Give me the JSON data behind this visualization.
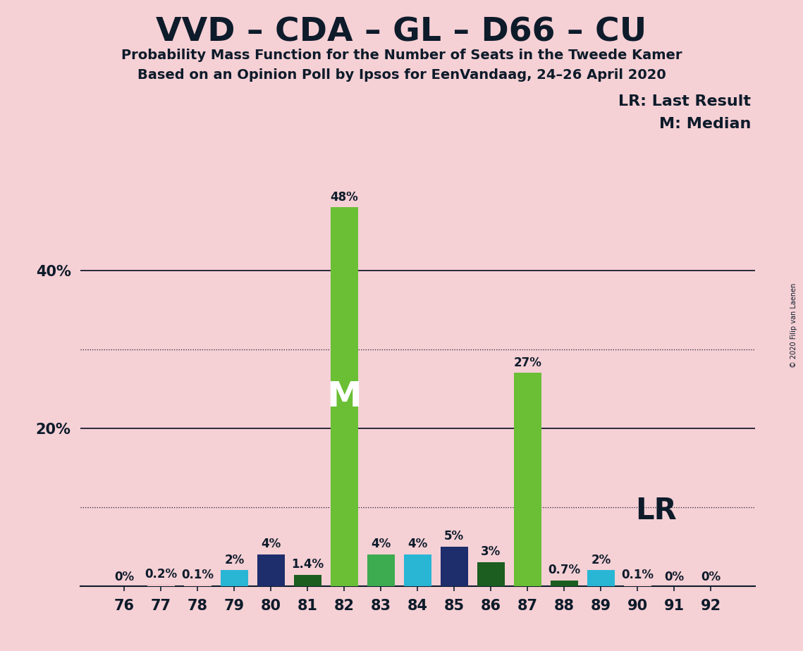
{
  "title": "VVD – CDA – GL – D66 – CU",
  "subtitle1": "Probability Mass Function for the Number of Seats in the Tweede Kamer",
  "subtitle2": "Based on an Opinion Poll by Ipsos for EenVandaag, 24–26 April 2020",
  "copyright": "© 2020 Filip van Laenen",
  "legend_lr": "LR: Last Result",
  "legend_m": "M: Median",
  "seats": [
    76,
    77,
    78,
    79,
    80,
    81,
    82,
    83,
    84,
    85,
    86,
    87,
    88,
    89,
    90,
    91,
    92
  ],
  "values": [
    0.0,
    0.2,
    0.1,
    2.0,
    4.0,
    1.4,
    48.0,
    4.0,
    4.0,
    5.0,
    3.0,
    27.0,
    0.7,
    2.0,
    0.1,
    0.0,
    0.0
  ],
  "labels": [
    "0%",
    "0.2%",
    "0.1%",
    "2%",
    "4%",
    "1.4%",
    "48%",
    "4%",
    "4%",
    "5%",
    "3%",
    "27%",
    "0.7%",
    "2%",
    "0.1%",
    "0%",
    "0%"
  ],
  "bar_colors": [
    "#f2c8cc",
    "#f2c8cc",
    "#f2c8cc",
    "#29b6d4",
    "#1e2d6b",
    "#1b5e20",
    "#6abf35",
    "#3dab50",
    "#29b6d4",
    "#1e2d6b",
    "#1b5e20",
    "#6abf35",
    "#1b5e20",
    "#29b6d4",
    "#f2c8cc",
    "#f2c8cc",
    "#f2c8cc"
  ],
  "median_seat": 82,
  "lr_seat": 87,
  "background_color": "#f5d0d5",
  "ylim": [
    0,
    52
  ],
  "solid_ylines": [
    20,
    40
  ],
  "dotted_ylines": [
    10,
    30
  ],
  "lr_label": "LR",
  "m_label": "M"
}
